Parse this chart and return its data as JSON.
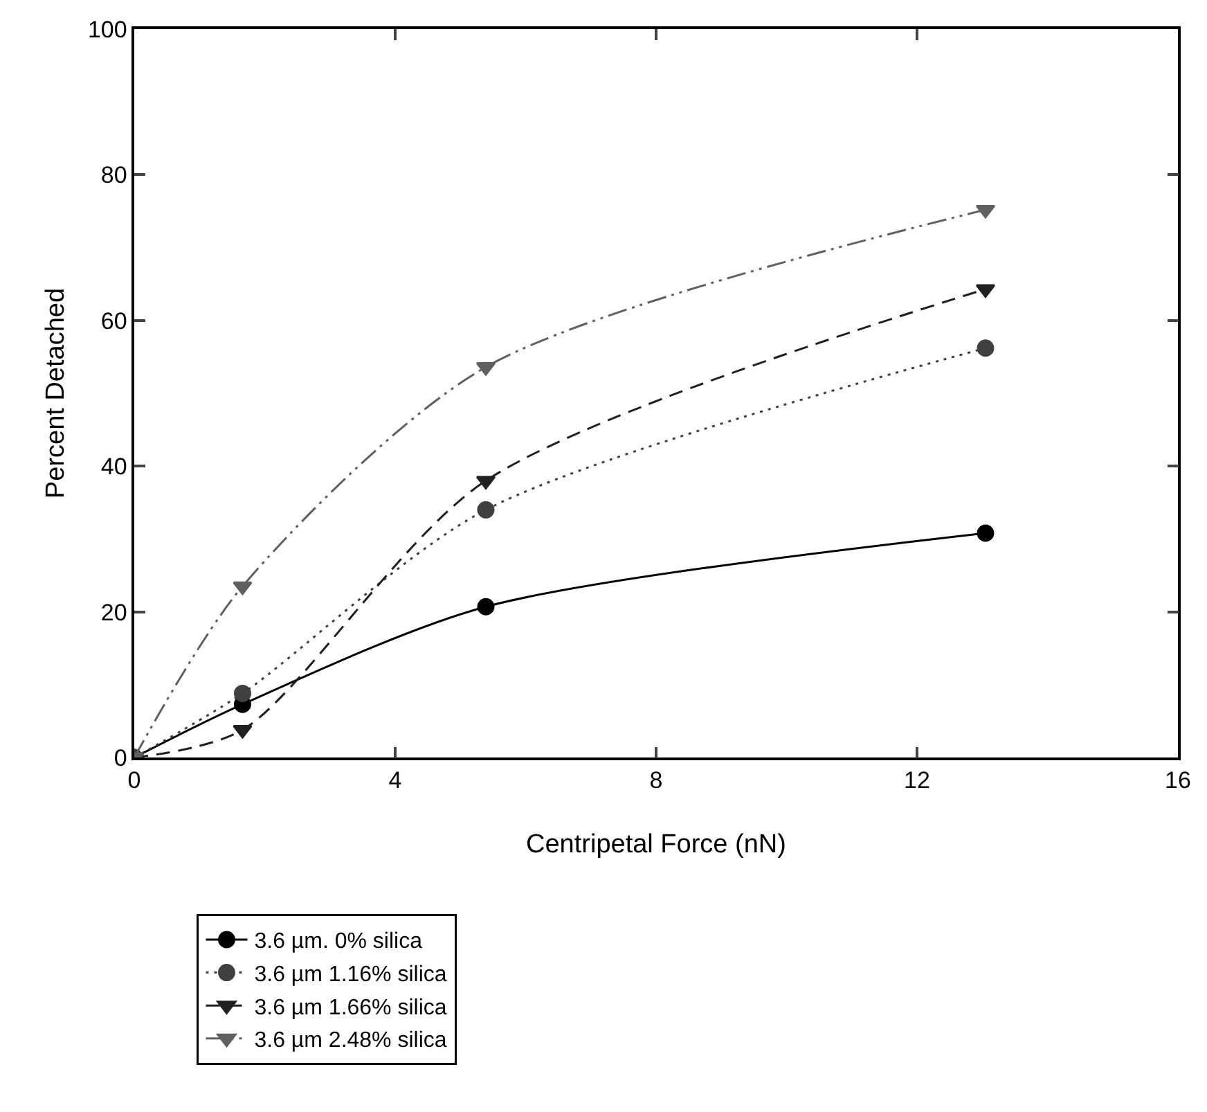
{
  "chart_data": {
    "type": "line",
    "xlabel": "Centripetal Force (nN)",
    "ylabel": "Percent Detached",
    "x": [
      0,
      1.66,
      5.39,
      13.05
    ],
    "series": [
      {
        "name": "3.6 µm. 0% silica",
        "color": "#000000",
        "marker": "circle",
        "line_style": "solid",
        "values": [
          0,
          7.3,
          20.7,
          30.8
        ]
      },
      {
        "name": "3.6 µm 1.16% silica",
        "color": "#404040",
        "marker": "circle",
        "line_style": "dotted",
        "values": [
          0,
          8.8,
          34,
          56.2
        ]
      },
      {
        "name": "3.6 µm 1.66% silica",
        "color": "#202020",
        "marker": "triangle",
        "line_style": "dashed",
        "values": [
          0,
          3.8,
          38,
          64.3
        ]
      },
      {
        "name": "3.6 µm 2.48% silica",
        "color": "#606060",
        "marker": "triangle",
        "line_style": "dashdotdot",
        "values": [
          0,
          23.5,
          53.6,
          75.2
        ]
      }
    ],
    "xlim": [
      0,
      16
    ],
    "xticks": [
      0,
      4,
      8,
      12,
      16
    ],
    "ylim": [
      0,
      100
    ],
    "yticks": [
      0,
      20,
      40,
      60,
      80,
      100
    ],
    "grid": false,
    "legend": "bottom left"
  }
}
